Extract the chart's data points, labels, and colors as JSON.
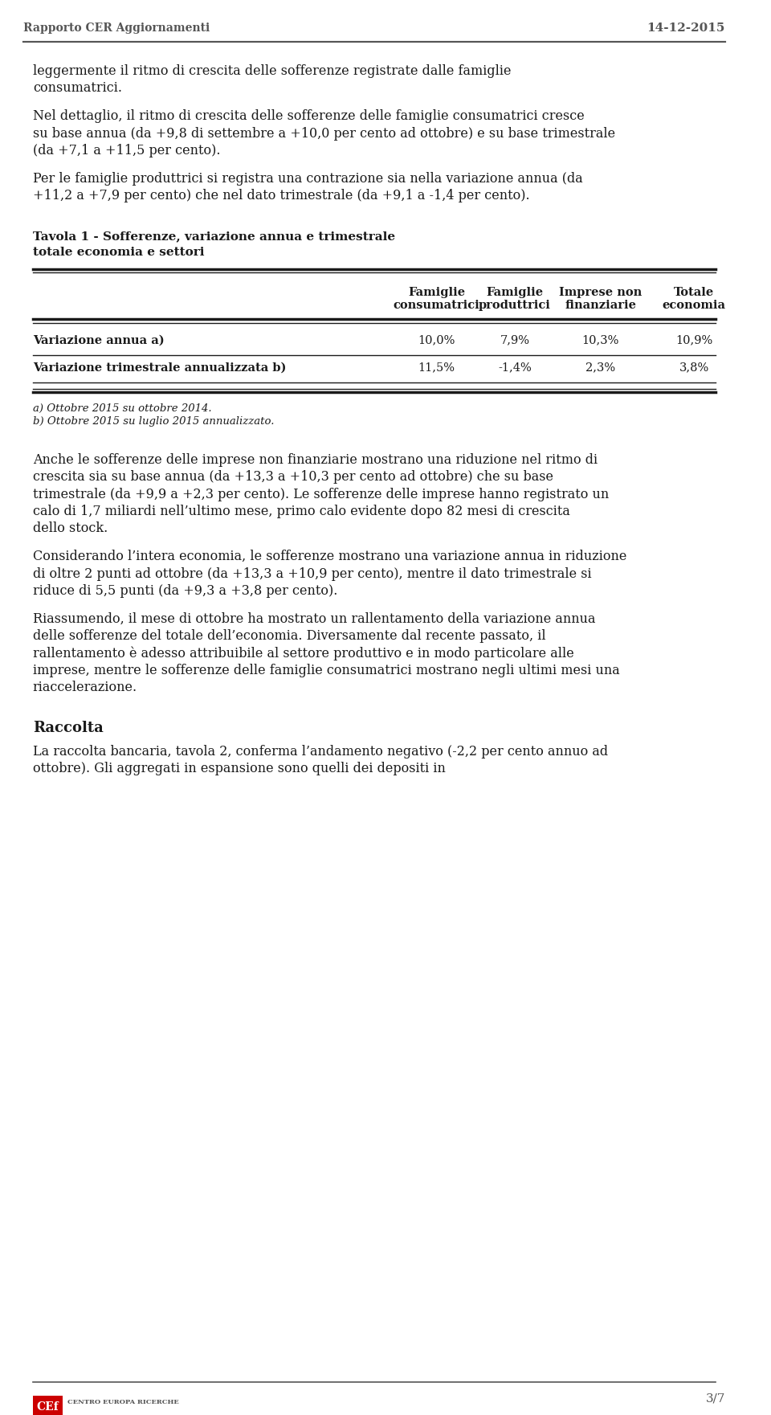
{
  "header_left": "Rapporto CER Aggiornamenti",
  "header_right": "14-12-2015",
  "page_number": "3/7",
  "background_color": "#ffffff",
  "text_color": "#2d2d2d",
  "header_color": "#555555",
  "paragraphs": [
    "leggermente il ritmo di crescita delle sofferenze registrate dalle famiglie consumatrici.",
    "Nel dettaglio, il ritmo di crescita delle sofferenze delle famiglie consumatrici cresce su base annua (da +9,8 di settembre a +10,0 per cento ad ottobre) e su base trimestrale (da +7,1 a +11,5 per cento).",
    "Per le famiglie produttrici si registra una contrazione sia nella variazione annua (da +11,2 a +7,9 per cento) che nel dato trimestrale (da +9,1 a -1,4 per cento)."
  ],
  "table_title_line1": "Tavola 1 - Sofferenze, variazione annua e trimestrale",
  "table_title_line2": "totale economia e settori",
  "table_headers": [
    "",
    "Famiglie\nconsumatrici",
    "Famiglie\nproduttrici",
    "Imprese non\nfinanziarie",
    "Totale\neconomia"
  ],
  "table_rows": [
    [
      "Variazione annua a)",
      "10,0%",
      "7,9%",
      "10,3%",
      "10,9%"
    ],
    [
      "Variazione trimestrale annualizzata b)",
      "11,5%",
      "-1,4%",
      "2,3%",
      "3,8%"
    ]
  ],
  "table_footnotes": [
    "a) Ottobre 2015 su ottobre 2014.",
    "b) Ottobre 2015 su luglio 2015 annualizzato."
  ],
  "paragraphs2": [
    "Anche le sofferenze delle imprese non finanziarie mostrano una riduzione nel ritmo di crescita sia su base annua (da +13,3 a +10,3 per cento ad ottobre) che su base trimestrale (da +9,9 a +2,3 per cento). Le sofferenze delle imprese hanno registrato un calo di 1,7 miliardi nell’ultimo mese, primo calo evidente dopo 82 mesi di crescita dello stock.",
    "Considerando l’intera economia, le sofferenze mostrano una variazione annua in riduzione di oltre 2 punti ad ottobre (da +13,3 a +10,9 per cento), mentre il dato trimestrale si riduce di 5,5 punti (da +9,3 a +3,8 per cento).",
    "Riassumendo, il mese di ottobre ha mostrato un rallentamento della variazione annua delle sofferenze del totale dell’economia. Diversamente dal recente passato, il rallentamento è adesso attribuibile al settore produttivo e in modo particolare alle imprese, mentre le sofferenze delle famiglie consumatrici mostrano negli ultimi mesi una riaccelerazione."
  ],
  "section_title": "Raccolta",
  "paragraph3": "La raccolta bancaria, tavola 2, conferma l’andamento negativo (-2,2 per cento annuo ad ottobre). Gli aggregati in espansione sono quelli dei depositi in",
  "logo_text": "CEf",
  "logo_subtext": "CENTRO EUROPA RICERCHE"
}
